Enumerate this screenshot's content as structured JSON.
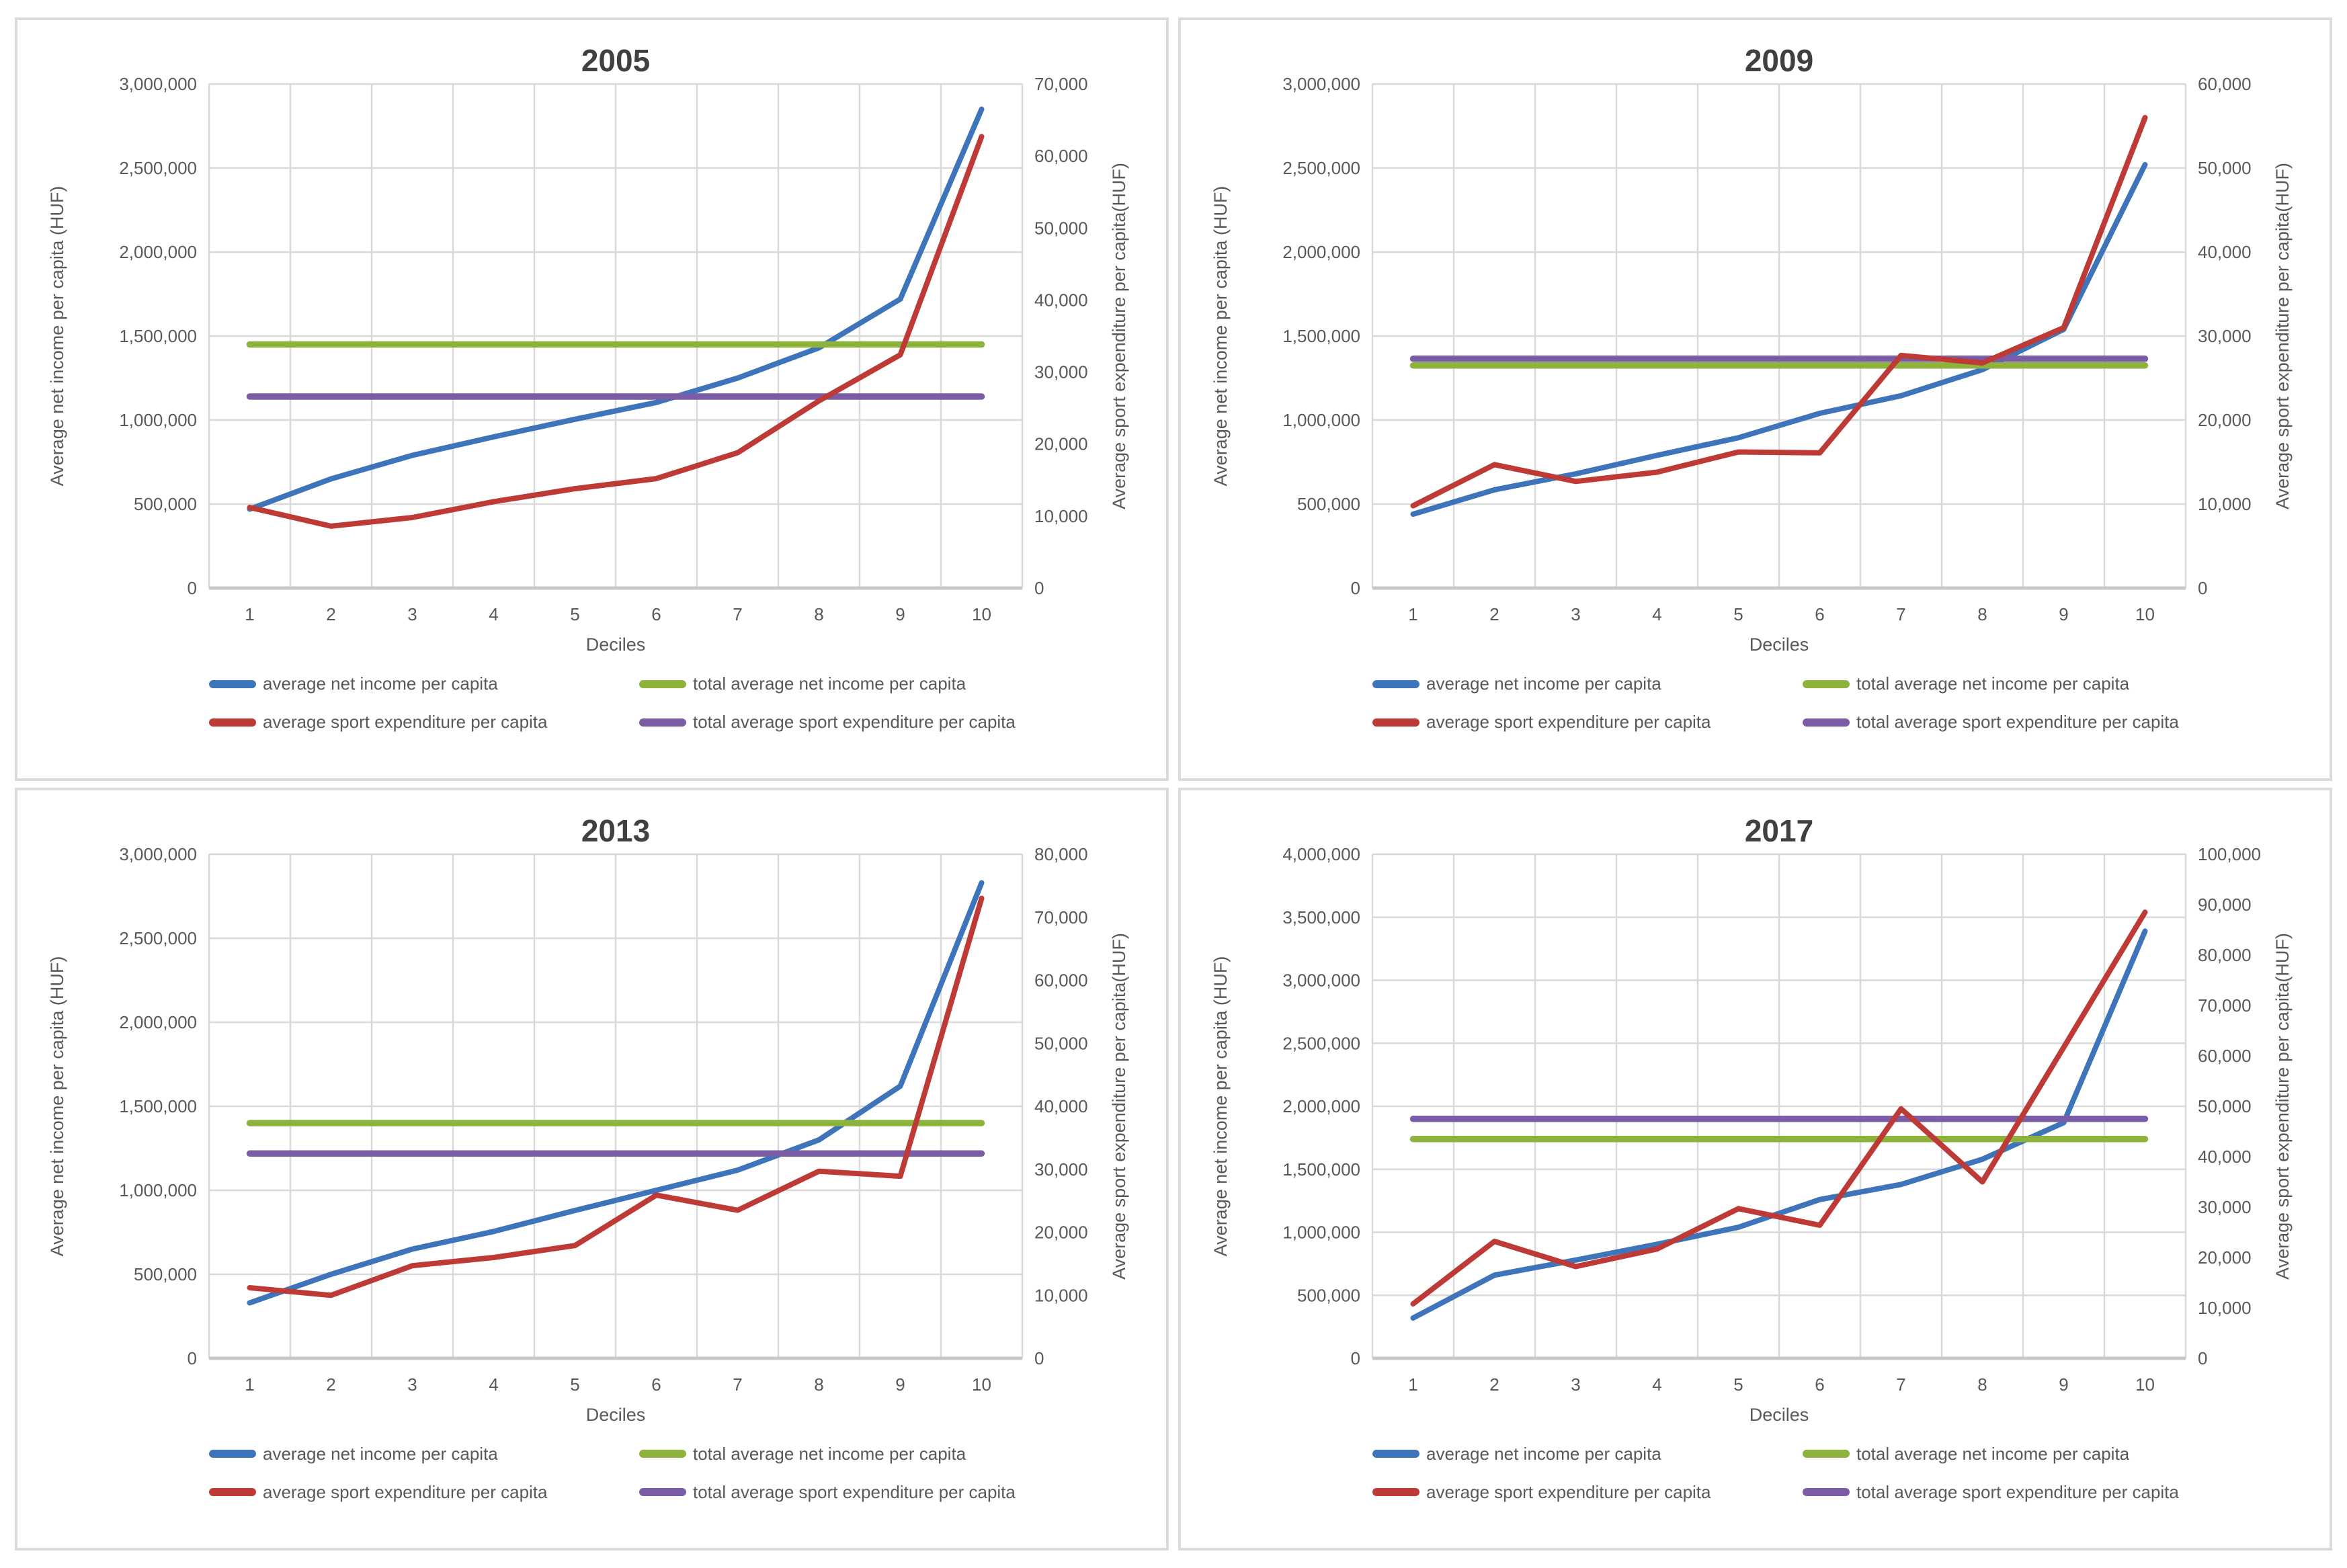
{
  "page": {
    "background": "#ffffff",
    "panel_border_color": "#DBDBDB"
  },
  "shared": {
    "left_axis_label": "Average net income per capita (HUF)",
    "right_axis_label": "Average sport expenditure per capita(HUF)",
    "x_axis_label": "Deciles",
    "legend": [
      "average net income per capita",
      "total average net income per capita",
      "average sport expenditure per capita",
      "total average sport expenditure per capita"
    ],
    "colors": {
      "net_income": "#3D74BA",
      "sport_expenditure": "#BE3A36",
      "total_net_income": "#8DB33C",
      "total_sport_expenditure": "#7B5CA6",
      "gridline": "#D9D9D9",
      "axis_line": "#C8C8C8",
      "text": "#595959",
      "title": "#404040"
    }
  },
  "chart_data": [
    {
      "type": "line",
      "title": "2005",
      "xlabel": "Deciles",
      "categories": [
        1,
        2,
        3,
        4,
        5,
        6,
        7,
        8,
        9,
        10
      ],
      "grid": true,
      "legend_position": "bottom",
      "left_axis": {
        "label": "Average net income per capita (HUF)",
        "min": 0,
        "max": 3000000,
        "step": 500000
      },
      "right_axis": {
        "label": "Average sport expenditure per capita(HUF)",
        "min": 0,
        "max": 70000,
        "step": 10000
      },
      "series": [
        {
          "name": "average net income per capita",
          "axis": "left",
          "color": "#3D74BA",
          "values": [
            470000,
            650000,
            790000,
            900000,
            1005000,
            1105000,
            1250000,
            1430000,
            1720000,
            2850000
          ]
        },
        {
          "name": "average sport expenditure per capita",
          "axis": "right",
          "color": "#BE3A36",
          "values": [
            11200,
            8600,
            9800,
            12000,
            13800,
            15200,
            18800,
            26000,
            32400,
            62700
          ]
        },
        {
          "name": "total average net income per capita",
          "axis": "left",
          "color": "#8DB33C",
          "constant": 1450000
        },
        {
          "name": "total average sport expenditure per capita",
          "axis": "right",
          "color": "#7B5CA6",
          "constant": 26600
        }
      ]
    },
    {
      "type": "line",
      "title": "2009",
      "xlabel": "Deciles",
      "categories": [
        1,
        2,
        3,
        4,
        5,
        6,
        7,
        8,
        9,
        10
      ],
      "grid": true,
      "legend_position": "bottom",
      "left_axis": {
        "label": "Average net income per capita (HUF)",
        "min": 0,
        "max": 3000000,
        "step": 500000
      },
      "right_axis": {
        "label": "Average sport expenditure per capita(HUF)",
        "min": 0,
        "max": 60000,
        "step": 10000
      },
      "series": [
        {
          "name": "average net income per capita",
          "axis": "left",
          "color": "#3D74BA",
          "values": [
            440000,
            585000,
            680000,
            790000,
            895000,
            1040000,
            1145000,
            1300000,
            1540000,
            2520000
          ]
        },
        {
          "name": "average sport expenditure per capita",
          "axis": "right",
          "color": "#BE3A36",
          "values": [
            9800,
            14700,
            12700,
            13800,
            16200,
            16100,
            27700,
            26800,
            31000,
            56000
          ]
        },
        {
          "name": "total average net income per capita",
          "axis": "left",
          "color": "#8DB33C",
          "constant": 1325000
        },
        {
          "name": "total average sport expenditure per capita",
          "axis": "right",
          "color": "#7B5CA6",
          "constant": 27300
        }
      ]
    },
    {
      "type": "line",
      "title": "2013",
      "xlabel": "Deciles",
      "categories": [
        1,
        2,
        3,
        4,
        5,
        6,
        7,
        8,
        9,
        10
      ],
      "grid": true,
      "legend_position": "bottom",
      "left_axis": {
        "label": "Average net income per capita (HUF)",
        "min": 0,
        "max": 3000000,
        "step": 500000
      },
      "right_axis": {
        "label": "Average sport expenditure per capita(HUF)",
        "min": 0,
        "max": 80000,
        "step": 10000
      },
      "series": [
        {
          "name": "average net income per capita",
          "axis": "left",
          "color": "#3D74BA",
          "values": [
            330000,
            500000,
            650000,
            755000,
            880000,
            1000000,
            1120000,
            1300000,
            1620000,
            2830000
          ]
        },
        {
          "name": "average sport expenditure per capita",
          "axis": "right",
          "color": "#BE3A36",
          "values": [
            11200,
            10000,
            14700,
            16000,
            17900,
            25900,
            23500,
            29700,
            28900,
            73000
          ]
        },
        {
          "name": "total average net income per capita",
          "axis": "left",
          "color": "#8DB33C",
          "constant": 1400000
        },
        {
          "name": "total average sport expenditure per capita",
          "axis": "right",
          "color": "#7B5CA6",
          "constant": 32500
        }
      ]
    },
    {
      "type": "line",
      "title": "2017",
      "xlabel": "Deciles",
      "categories": [
        1,
        2,
        3,
        4,
        5,
        6,
        7,
        8,
        9,
        10
      ],
      "grid": true,
      "legend_position": "bottom",
      "left_axis": {
        "label": "Average net income per capita (HUF)",
        "min": 0,
        "max": 4000000,
        "step": 500000
      },
      "right_axis": {
        "label": "Average sport expenditure per capita(HUF)",
        "min": 0,
        "max": 100000,
        "step": 10000
      },
      "series": [
        {
          "name": "average net income per capita",
          "axis": "left",
          "color": "#3D74BA",
          "values": [
            320000,
            660000,
            780000,
            905000,
            1040000,
            1260000,
            1380000,
            1580000,
            1870000,
            3390000
          ]
        },
        {
          "name": "average sport expenditure per capita",
          "axis": "right",
          "color": "#BE3A36",
          "values": [
            10800,
            23200,
            18200,
            21700,
            29700,
            26400,
            49500,
            35000,
            61700,
            88500
          ]
        },
        {
          "name": "total average net income per capita",
          "axis": "left",
          "color": "#8DB33C",
          "constant": 1740000
        },
        {
          "name": "total average sport expenditure per capita",
          "axis": "right",
          "color": "#7B5CA6",
          "constant": 47500
        }
      ]
    }
  ]
}
